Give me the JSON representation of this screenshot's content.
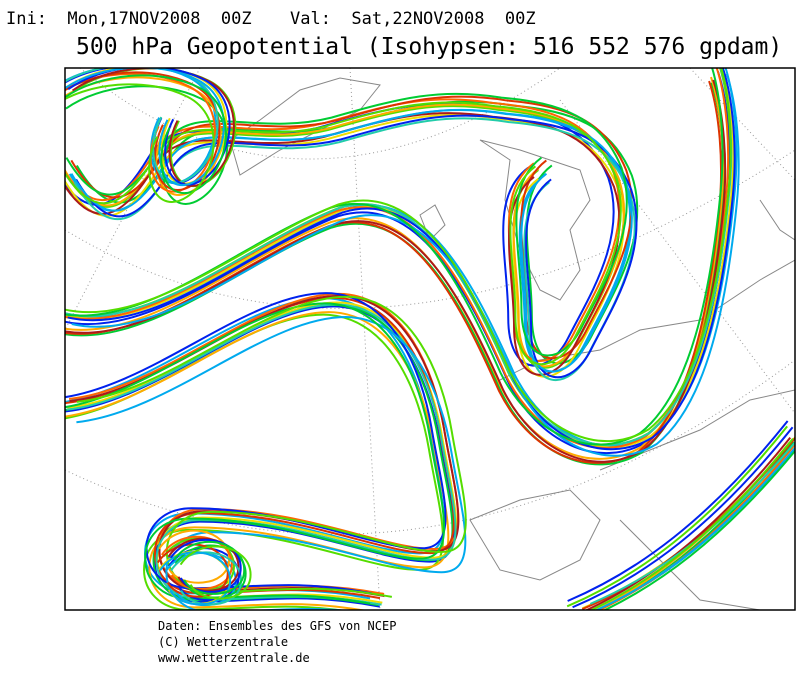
{
  "header": {
    "init": "Ini:  Mon,17NOV2008  00Z",
    "valid": "Val:  Sat,22NOV2008  00Z",
    "title": "500 hPa Geopotential (Isohypsen: 516 552 576 gpdam)"
  },
  "footer": {
    "lines": [
      "Daten: Ensembles des GFS von NCEP",
      "(C) Wetterzentrale",
      "www.wetterzentrale.de"
    ]
  }
}
